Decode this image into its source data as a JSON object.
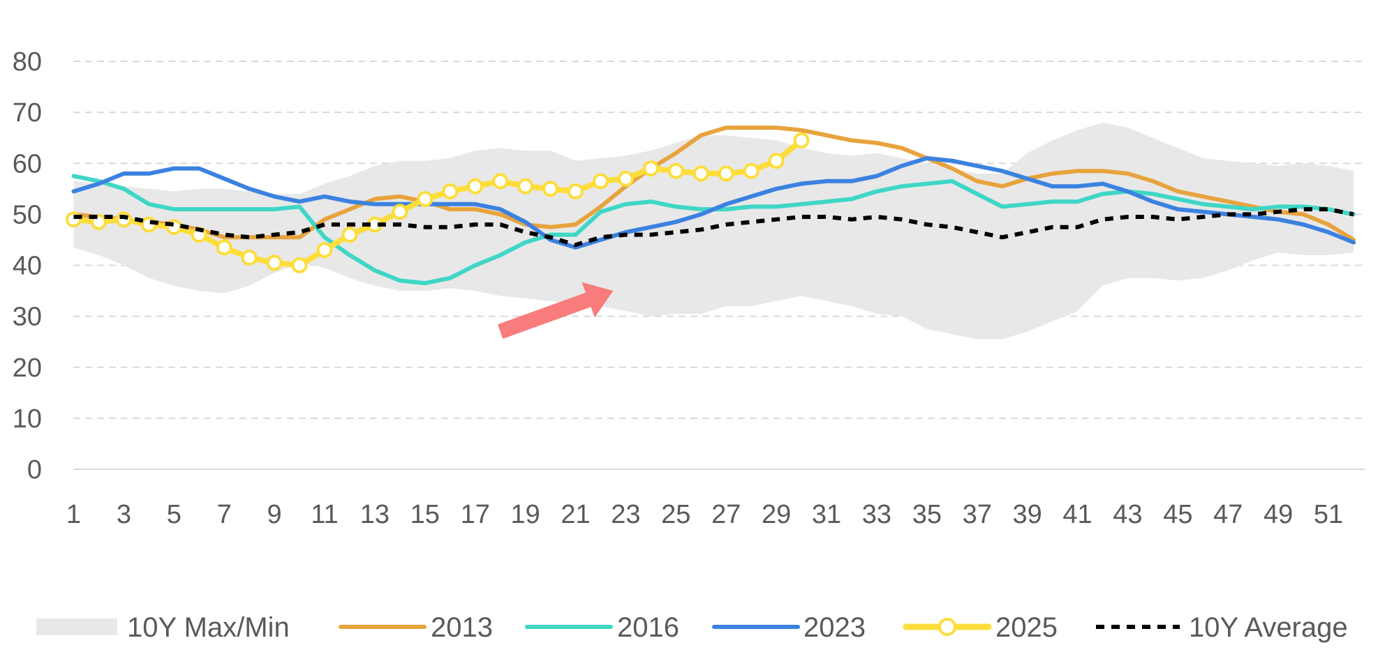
{
  "chart_data": {
    "type": "line",
    "title": "",
    "xlabel": "",
    "ylabel": "",
    "xlim": [
      1,
      52
    ],
    "ylim": [
      0,
      80
    ],
    "grid": true,
    "legend_position": "bottom",
    "x_tick_labels": [
      "1",
      "3",
      "5",
      "7",
      "9",
      "11",
      "13",
      "15",
      "17",
      "19",
      "21",
      "23",
      "25",
      "27",
      "29",
      "31",
      "33",
      "35",
      "37",
      "39",
      "41",
      "43",
      "45",
      "47",
      "49",
      "51"
    ],
    "y_tick_labels": [
      "0",
      "10",
      "20",
      "30",
      "40",
      "50",
      "60",
      "70",
      "80"
    ],
    "band": {
      "name": "10Y Max/Min",
      "color": "#e8e8e8",
      "max": [
        56.5,
        56,
        55.5,
        55,
        54.5,
        55,
        55,
        54.5,
        54,
        54,
        56,
        57.5,
        59.5,
        60.5,
        60.5,
        61,
        62.5,
        63,
        62.5,
        62.5,
        60.5,
        61,
        61.5,
        62.5,
        64,
        65.5,
        65.5,
        65,
        64.5,
        63,
        62,
        61.5,
        62,
        61,
        60,
        59,
        58,
        58,
        62,
        64.5,
        66.5,
        68,
        67,
        65,
        63,
        61,
        60.5,
        60,
        59.5,
        60,
        59.5,
        58.5
      ],
      "min": [
        43.5,
        42,
        40,
        37.5,
        36,
        35,
        34.5,
        36,
        38.5,
        40.5,
        39.5,
        37.5,
        36,
        35,
        35,
        35.5,
        35,
        34,
        33.5,
        33,
        32.5,
        32,
        31,
        30,
        30.5,
        30.5,
        32,
        32,
        33,
        34,
        33,
        32,
        30.5,
        30,
        27.5,
        26.5,
        25.5,
        25.5,
        27,
        29,
        31,
        36,
        37.5,
        37.5,
        37,
        37.5,
        39,
        41,
        42.5,
        42,
        42,
        42.5
      ]
    },
    "series": [
      {
        "name": "2013",
        "color": "#E8A33D",
        "values": [
          50,
          49.5,
          49,
          48.5,
          48,
          47,
          45.5,
          45.5,
          45.5,
          45.5,
          49,
          51,
          53,
          53.5,
          52.5,
          51,
          51,
          50,
          48,
          47.5,
          48,
          51.5,
          55.5,
          59,
          62,
          65.5,
          67,
          67,
          67,
          66.5,
          65.5,
          64.5,
          64,
          63,
          61,
          59,
          56.5,
          55.5,
          57,
          58,
          58.5,
          58.5,
          58,
          56.5,
          54.5,
          53.5,
          52.5,
          51.5,
          50.5,
          50,
          48,
          45
        ]
      },
      {
        "name": "2016",
        "color": "#3FD6C6",
        "values": [
          57.5,
          56.5,
          55,
          52,
          51,
          51,
          51,
          51,
          51,
          51.5,
          45.5,
          42,
          39,
          37,
          36.5,
          37.5,
          40,
          42,
          44.5,
          46,
          46,
          50.5,
          52,
          52.5,
          51.5,
          51,
          51,
          51.5,
          51.5,
          52,
          52.5,
          53,
          54.5,
          55.5,
          56,
          56.5,
          54,
          51.5,
          52,
          52.5,
          52.5,
          54,
          54.5,
          54,
          53,
          52,
          51.5,
          51,
          51.5,
          51.5,
          51,
          50
        ]
      },
      {
        "name": "2023",
        "color": "#3B82E0",
        "values": [
          54.5,
          56,
          58,
          58,
          59,
          59,
          57,
          55,
          53.5,
          52.5,
          53.5,
          52.5,
          52,
          52,
          52,
          52,
          52,
          51,
          48.5,
          45,
          43.5,
          45,
          46.5,
          47.5,
          48.5,
          50,
          52,
          53.5,
          55,
          56,
          56.5,
          56.5,
          57.5,
          59.5,
          61,
          60.5,
          59.5,
          58.5,
          57,
          55.5,
          55.5,
          56,
          54.5,
          52.5,
          51,
          50.5,
          50,
          49.5,
          49,
          48,
          46.5,
          44.5
        ]
      },
      {
        "name": "2025",
        "color": "#FDDD3A",
        "marker": "circle",
        "values": [
          49,
          48.5,
          49,
          48,
          47.5,
          46,
          43.5,
          41.5,
          40.5,
          40,
          43,
          46,
          48,
          50.5,
          53,
          54.5,
          55.5,
          56.5,
          55.5,
          55,
          54.5,
          56.5,
          57,
          59,
          58.5,
          58,
          58,
          58.5,
          60.5,
          64.5
        ]
      },
      {
        "name": "10Y Average",
        "color": "#000000",
        "dash": true,
        "values": [
          49.5,
          49.5,
          49.5,
          48.5,
          48,
          47,
          46,
          45.5,
          46,
          46.5,
          48,
          48,
          48,
          48,
          47.5,
          47.5,
          48,
          48,
          46.5,
          45.5,
          44,
          45.5,
          46,
          46,
          46.5,
          47,
          48,
          48.5,
          49,
          49.5,
          49.5,
          49,
          49.5,
          49,
          48,
          47.5,
          46.5,
          45.5,
          46.5,
          47.5,
          47.5,
          49,
          49.5,
          49.5,
          49,
          49.5,
          50,
          50,
          50.5,
          51,
          51,
          50
        ]
      }
    ],
    "annotations": [
      {
        "type": "arrow",
        "color": "#F87C7C",
        "from": [
          18,
          27
        ],
        "to": [
          22.5,
          35
        ]
      }
    ]
  }
}
